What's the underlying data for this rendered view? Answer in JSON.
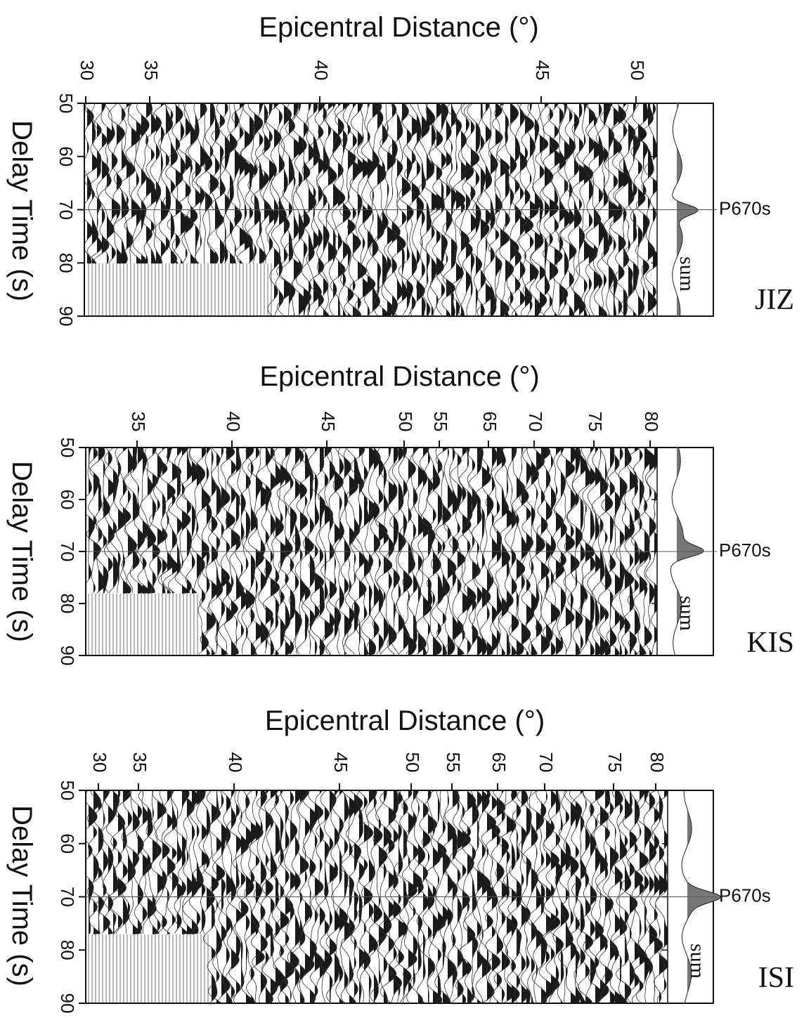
{
  "chart_data": [
    {
      "type": "record-section",
      "title": "Epicentral Distance (°)",
      "ylabel": "Delay Time (s)",
      "station": "JIZ",
      "annotation": "P670s",
      "sum_label": "sum",
      "xticks": [
        30,
        35,
        40,
        45,
        50
      ],
      "ylim": [
        50,
        90
      ],
      "yticks": [
        50,
        60,
        70,
        80,
        90
      ],
      "phase_time": 70
    },
    {
      "type": "record-section",
      "title": "Epicentral Distance (°)",
      "ylabel": "Delay Time (s)",
      "station": "KIS",
      "annotation": "P670s",
      "sum_label": "sum",
      "xticks": [
        35,
        40,
        45,
        50,
        55,
        65,
        70,
        75,
        80
      ],
      "ylim": [
        50,
        90
      ],
      "yticks": [
        50,
        60,
        70,
        80,
        90
      ],
      "phase_time": 70
    },
    {
      "type": "record-section",
      "title": "Epicentral Distance (°)",
      "ylabel": "Delay Time (s)",
      "station": "ISI",
      "annotation": "P670s",
      "sum_label": "sum",
      "xticks": [
        30,
        35,
        40,
        45,
        50,
        55,
        65,
        70,
        75,
        80
      ],
      "ylim": [
        50,
        90
      ],
      "yticks": [
        50,
        60,
        70,
        80,
        90
      ],
      "phase_time": 70
    }
  ]
}
